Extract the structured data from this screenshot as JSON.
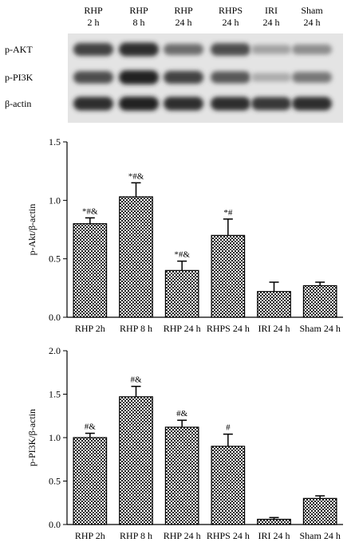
{
  "western_blot": {
    "lanes": [
      {
        "line1": "RHP",
        "line2": "2 h"
      },
      {
        "line1": "RHP",
        "line2": "8 h"
      },
      {
        "line1": "RHP",
        "line2": "24 h"
      },
      {
        "line1": "RHPS",
        "line2": "24 h"
      },
      {
        "line1": "IRI",
        "line2": "24 h"
      },
      {
        "line1": "Sham",
        "line2": "24 h"
      }
    ],
    "rows": [
      {
        "label": "p-AKT",
        "intensity": [
          0.8,
          0.9,
          0.6,
          0.75,
          0.35,
          0.45
        ]
      },
      {
        "label": "p-PI3K",
        "intensity": [
          0.75,
          0.95,
          0.8,
          0.7,
          0.3,
          0.55
        ]
      },
      {
        "label": "β-actin",
        "intensity": [
          0.9,
          0.95,
          0.9,
          0.9,
          0.85,
          0.9
        ]
      }
    ]
  },
  "chart_data": [
    {
      "type": "bar",
      "categories": [
        "RHP 2h",
        "RHP 8 h",
        "RHP 24 h",
        "RHPS 24 h",
        "IRI 24 h",
        "Sham 24 h"
      ],
      "values": [
        0.8,
        1.03,
        0.4,
        0.7,
        0.22,
        0.27
      ],
      "errors": [
        0.05,
        0.12,
        0.08,
        0.14,
        0.08,
        0.03
      ],
      "annotations": [
        "*#&",
        "*#&",
        "*#&",
        "*#",
        "",
        ""
      ],
      "ylabel": "p-Akt/β-actin",
      "ylim": [
        0,
        1.5
      ],
      "yticks": [
        "0.0",
        "0.5",
        "1.0",
        "1.5"
      ]
    },
    {
      "type": "bar",
      "categories": [
        "RHP 2h",
        "RHP 8 h",
        "RHP 24 h",
        "RHPS 24 h",
        "IRI 24 h",
        "Sham 24 h"
      ],
      "values": [
        1.0,
        1.47,
        1.12,
        0.9,
        0.06,
        0.3
      ],
      "errors": [
        0.05,
        0.12,
        0.08,
        0.14,
        0.02,
        0.03
      ],
      "annotations": [
        "#&",
        "#&",
        "#&",
        "#",
        "",
        ""
      ],
      "ylabel": "p-PI3K/β-actin",
      "ylim": [
        0,
        2.0
      ],
      "yticks": [
        "0.0",
        "0.5",
        "1.0",
        "1.5",
        "2.0"
      ]
    }
  ]
}
